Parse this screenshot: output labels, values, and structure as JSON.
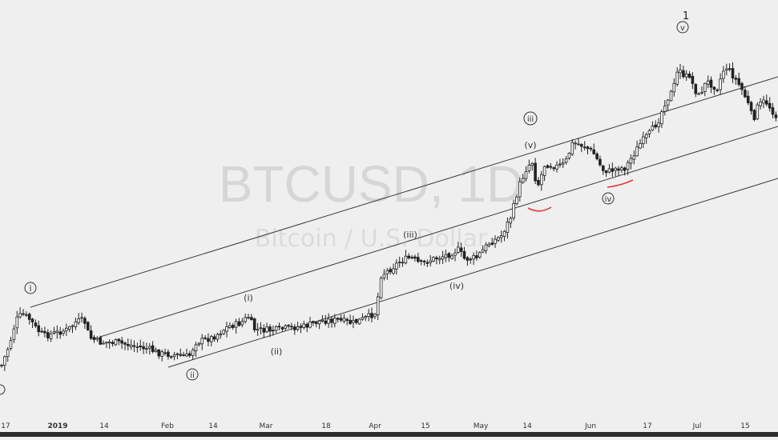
{
  "chart_data": {
    "type": "candlestick",
    "watermark": {
      "symbol": "BTCUSD, 1D",
      "description": "Bitcoin / U.S. Dollar"
    },
    "x_axis": {
      "tick_labels": [
        "17",
        "2019",
        "14",
        "Feb",
        "14",
        "Mar",
        "18",
        "Apr",
        "15",
        "May",
        "14",
        "Jun",
        "17",
        "Jul",
        "15"
      ]
    },
    "wave_labels": {
      "primary": {
        "count": "1",
        "subwaves": [
          "i",
          "ii",
          "iii",
          "iv",
          "v"
        ]
      },
      "minor": [
        "(i)",
        "(ii)",
        "(iii)",
        "(iv)",
        "(v)"
      ]
    },
    "channel_lines": 3,
    "marker_color": "#e53935"
  }
}
